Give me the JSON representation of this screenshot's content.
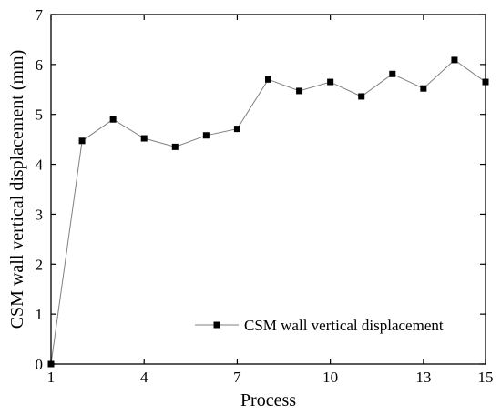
{
  "chart_data": {
    "type": "line",
    "xlabel": "Process",
    "ylabel": "CSM wall vertical displacement (mm)",
    "xlim": [
      1,
      15
    ],
    "ylim": [
      0,
      7
    ],
    "xticks": [
      1,
      4,
      7,
      10,
      13,
      15
    ],
    "yticks": [
      0,
      1,
      2,
      3,
      4,
      5,
      6,
      7
    ],
    "grid": false,
    "legend_position": "lower-right",
    "marker": "square",
    "colors": {
      "line": "#7f7f7f",
      "marker": "#000000",
      "axis": "#000000"
    },
    "series": [
      {
        "name": "CSM wall vertical displacement",
        "x": [
          1,
          2,
          3,
          4,
          5,
          6,
          7,
          8,
          9,
          10,
          11,
          12,
          13,
          14,
          15
        ],
        "values": [
          0,
          4.47,
          4.9,
          4.52,
          4.35,
          4.58,
          4.71,
          5.7,
          5.47,
          5.65,
          5.36,
          5.81,
          5.52,
          6.09,
          5.65
        ]
      }
    ]
  }
}
